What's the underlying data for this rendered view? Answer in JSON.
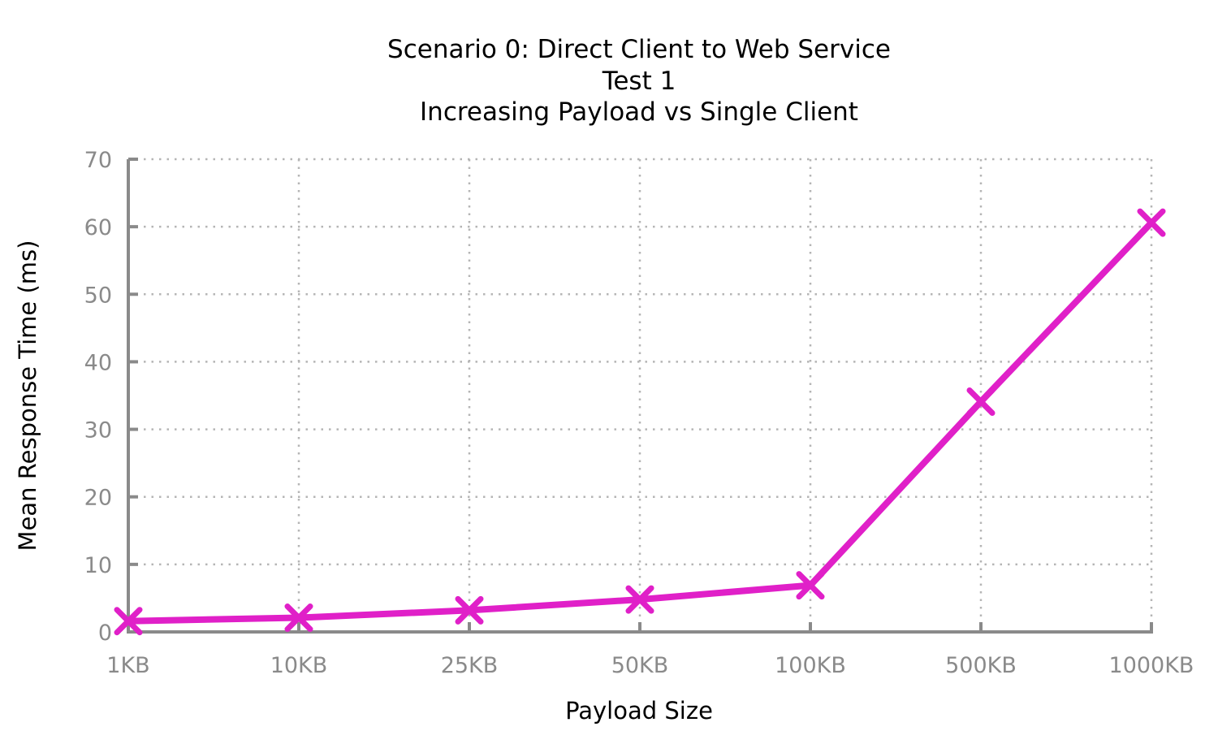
{
  "chart_data": {
    "type": "line",
    "title_lines": [
      "Scenario 0: Direct Client to Web Service",
      "Test 1",
      "Increasing Payload vs Single Client"
    ],
    "xlabel": "Payload Size",
    "ylabel": "Mean Response Time (ms)",
    "categories": [
      "1KB",
      "10KB",
      "25KB",
      "50KB",
      "100KB",
      "500KB",
      "1000KB"
    ],
    "ylim": [
      0,
      70
    ],
    "yticks": [
      0,
      10,
      20,
      30,
      40,
      50,
      60,
      70
    ],
    "grid": true,
    "series": [
      {
        "name": "Mean Response Time",
        "color": "#e020c8",
        "marker": "x",
        "values": [
          1.6,
          2.1,
          3.2,
          4.8,
          6.9,
          34.1,
          60.6
        ]
      }
    ]
  }
}
